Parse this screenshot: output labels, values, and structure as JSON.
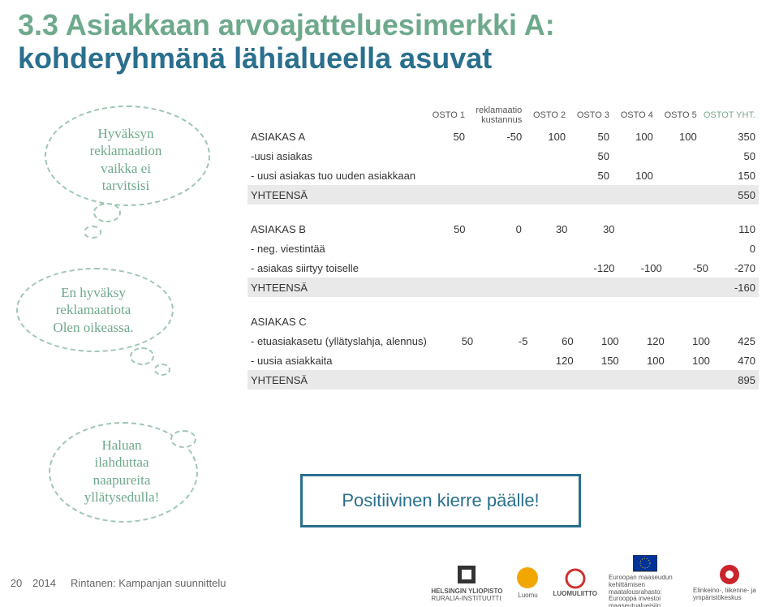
{
  "title": {
    "line1": "3.3 Asiakkaan arvoajatteluesimerkki A:",
    "line2": "kohderyhmänä lähialueella asuvat",
    "color1": "#6ea98c",
    "color2": "#2a6f8e"
  },
  "bubbles": {
    "b1": {
      "lines": [
        "Hyväksyn",
        "reklamaation",
        "vaikka ei",
        "tarvitsisi"
      ]
    },
    "b2": {
      "lines": [
        "En hyväksy",
        "reklamaatiota",
        "Olen oikeassa."
      ]
    },
    "b3": {
      "lines": [
        "Haluan",
        "ilahduttaa",
        "naapureita",
        "yllätysedulla!"
      ]
    }
  },
  "table": {
    "headers": [
      "",
      "OSTO 1",
      "reklamaatio kustannus",
      "OSTO 2",
      "OSTO 3",
      "OSTO 4",
      "OSTO 5",
      "OSTOT YHT."
    ],
    "blocks": [
      {
        "rows": [
          {
            "label": "ASIAKAS A",
            "vals": [
              "50",
              "-50",
              "100",
              "50",
              "100",
              "100",
              "350"
            ]
          },
          {
            "label": "-uusi asiakas",
            "vals": [
              "",
              "",
              "",
              "50",
              "",
              "",
              "50"
            ]
          },
          {
            "label": "- uusi asiakas tuo uuden asiakkaan",
            "vals": [
              "",
              "",
              "",
              "50",
              "100",
              "",
              "150"
            ]
          }
        ],
        "sum": {
          "label": "YHTEENSÄ",
          "vals": [
            "",
            "",
            "",
            "",
            "",
            "",
            "550"
          ]
        }
      },
      {
        "rows": [
          {
            "label": "ASIAKAS B",
            "vals": [
              "50",
              "0",
              "30",
              "30",
              "",
              "",
              "110"
            ]
          },
          {
            "label": "- neg. viestintää",
            "vals": [
              "",
              "",
              "",
              "",
              "",
              "",
              "0"
            ]
          },
          {
            "label": "- asiakas siirtyy toiselle",
            "vals": [
              "",
              "",
              "",
              "-120",
              "-100",
              "-50",
              "-270"
            ]
          }
        ],
        "sum": {
          "label": "YHTEENSÄ",
          "vals": [
            "",
            "",
            "",
            "",
            "",
            "",
            "-160"
          ]
        }
      },
      {
        "rows": [
          {
            "label": "ASIAKAS C",
            "vals": [
              "",
              "",
              "",
              "",
              "",
              "",
              ""
            ]
          },
          {
            "label": "- etuasiakasetu (yllätyslahja, alennus)",
            "vals": [
              "50",
              "-5",
              "60",
              "100",
              "120",
              "100",
              "425"
            ]
          },
          {
            "label": "- uusia asiakkaita",
            "vals": [
              "",
              "",
              "120",
              "150",
              "100",
              "100",
              "470"
            ]
          }
        ],
        "sum": {
          "label": "YHTEENSÄ",
          "vals": [
            "",
            "",
            "",
            "",
            "",
            "",
            "895"
          ]
        }
      }
    ]
  },
  "callout": "Positiivinen kierre päälle!",
  "footer": {
    "page": "20",
    "year": "2014",
    "author": "Rintanen: Kampanjan suunnittelu",
    "logos": {
      "uni": "HELSINGIN YLIOPISTO",
      "uni2": "RURALIA-INSTITUUTTI",
      "luomu": "Luomu",
      "luomuliitto": "LUOMULIITTO",
      "eu1": "Euroopan maaseudun",
      "eu2": "kehittämisen maatalousrahasto:",
      "eu3": "Eurooppa investoi maaseutualueisiin",
      "ely": "Elinkeino-, liikenne- ja ympäristökeskus"
    }
  },
  "style": {
    "bubble_border": "#9ec7b2",
    "bubble_text": "#6ea98c",
    "sum_bg": "#e9e9e9",
    "callout_color": "#2a6f8e"
  }
}
